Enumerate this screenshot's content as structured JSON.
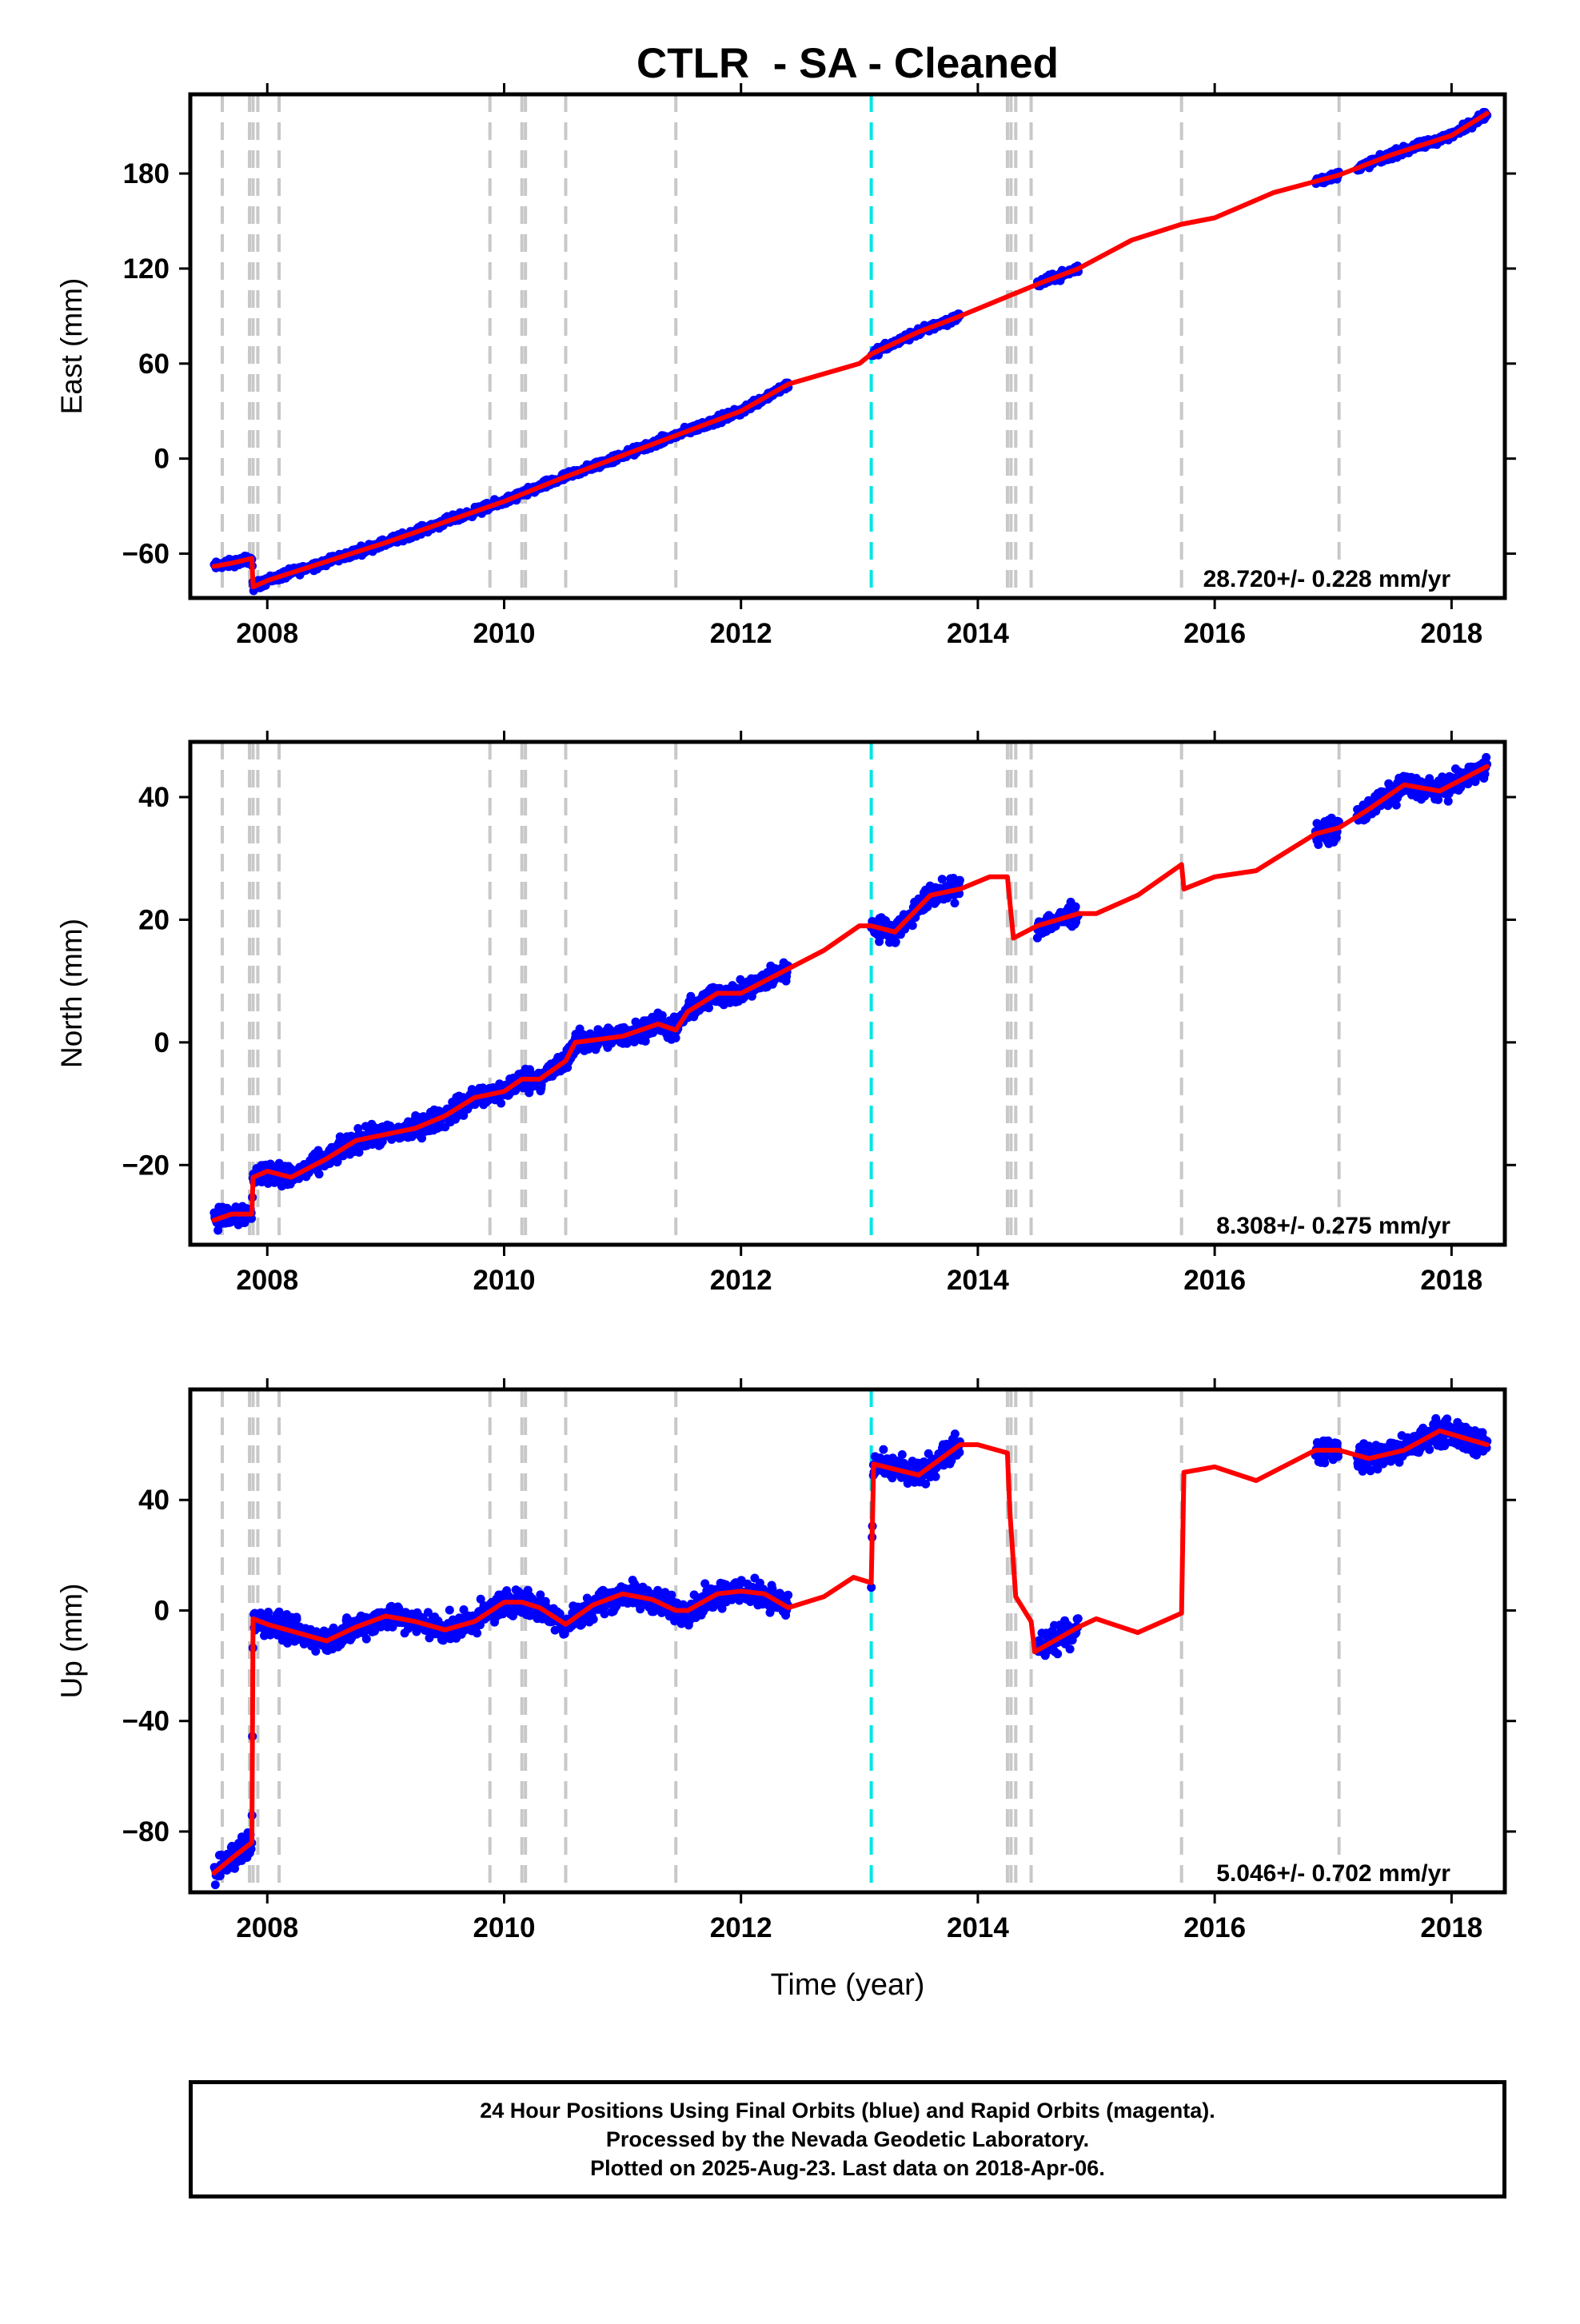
{
  "chart_data": {
    "type": "scatter",
    "title": "CTLR  - SA - Cleaned",
    "xlabel": "Time (year)",
    "xlim": [
      2007.35,
      2018.45
    ],
    "xticks": [
      2008,
      2010,
      2012,
      2014,
      2016,
      2018
    ],
    "vertical_lines": {
      "gray_dashed": [
        2007.62,
        2007.85,
        2007.88,
        2007.92,
        2008.1,
        2009.88,
        2010.15,
        2010.18,
        2010.52,
        2011.45,
        2014.25,
        2014.28,
        2014.32,
        2014.45,
        2015.72,
        2017.05
      ],
      "cyan_dashed": [
        2013.1
      ]
    },
    "series_colors": {
      "observed": "#0000ff",
      "model": "#ff0000",
      "gray_line": "#c8c8c8",
      "cyan_line": "#00e5e5"
    },
    "observation_windows": [
      [
        2007.55,
        2008.0
      ],
      [
        2008.0,
        2012.4
      ],
      [
        2013.1,
        2013.85
      ],
      [
        2014.5,
        2014.85
      ],
      [
        2016.85,
        2017.05
      ],
      [
        2017.2,
        2018.3
      ]
    ],
    "panels": [
      {
        "ylabel": "East (mm)",
        "ylim": [
          -88,
          230
        ],
        "yticks": [
          -60,
          0,
          60,
          120,
          180
        ],
        "rate": "28.720+/- 0.228 mm/yr",
        "noise_mm": 2.2,
        "model": [
          [
            2007.55,
            -68
          ],
          [
            2007.7,
            -66
          ],
          [
            2007.87,
            -63
          ],
          [
            2007.88,
            -81
          ],
          [
            2008.0,
            -77
          ],
          [
            2008.5,
            -65
          ],
          [
            2009.0,
            -53
          ],
          [
            2009.5,
            -40
          ],
          [
            2010.0,
            -27
          ],
          [
            2010.5,
            -12
          ],
          [
            2011.0,
            2
          ],
          [
            2011.5,
            16
          ],
          [
            2012.0,
            30
          ],
          [
            2012.4,
            47
          ],
          [
            2013.0,
            60
          ],
          [
            2013.1,
            66
          ],
          [
            2013.5,
            80
          ],
          [
            2013.85,
            90
          ],
          [
            2014.5,
            110
          ],
          [
            2014.85,
            120
          ],
          [
            2015.3,
            138
          ],
          [
            2015.72,
            148
          ],
          [
            2016.0,
            152
          ],
          [
            2016.5,
            168
          ],
          [
            2017.05,
            179
          ],
          [
            2017.5,
            192
          ],
          [
            2018.0,
            204
          ],
          [
            2018.3,
            218
          ]
        ]
      },
      {
        "ylabel": "North (mm)",
        "ylim": [
          -33,
          49
        ],
        "yticks": [
          -20,
          0,
          20,
          40
        ],
        "rate": "8.308+/- 0.275 mm/yr",
        "noise_mm": 1.5,
        "model": [
          [
            2007.55,
            -29
          ],
          [
            2007.7,
            -28
          ],
          [
            2007.87,
            -28
          ],
          [
            2007.88,
            -22
          ],
          [
            2008.0,
            -21
          ],
          [
            2008.2,
            -22
          ],
          [
            2008.5,
            -19
          ],
          [
            2008.75,
            -16
          ],
          [
            2009.0,
            -15
          ],
          [
            2009.25,
            -14
          ],
          [
            2009.5,
            -12
          ],
          [
            2009.75,
            -9
          ],
          [
            2010.0,
            -8
          ],
          [
            2010.15,
            -6
          ],
          [
            2010.3,
            -6
          ],
          [
            2010.52,
            -3
          ],
          [
            2010.6,
            0
          ],
          [
            2011.0,
            1
          ],
          [
            2011.3,
            3
          ],
          [
            2011.45,
            2
          ],
          [
            2011.55,
            5
          ],
          [
            2011.8,
            8
          ],
          [
            2012.0,
            8
          ],
          [
            2012.2,
            10
          ],
          [
            2012.4,
            12
          ],
          [
            2012.7,
            15
          ],
          [
            2013.0,
            19
          ],
          [
            2013.1,
            19
          ],
          [
            2013.3,
            18
          ],
          [
            2013.6,
            24
          ],
          [
            2013.85,
            25
          ],
          [
            2014.1,
            27
          ],
          [
            2014.25,
            27
          ],
          [
            2014.3,
            17
          ],
          [
            2014.5,
            19
          ],
          [
            2014.85,
            21
          ],
          [
            2015.0,
            21
          ],
          [
            2015.35,
            24
          ],
          [
            2015.72,
            29
          ],
          [
            2015.74,
            25
          ],
          [
            2016.0,
            27
          ],
          [
            2016.35,
            28
          ],
          [
            2016.85,
            34
          ],
          [
            2017.05,
            35
          ],
          [
            2017.3,
            38
          ],
          [
            2017.6,
            42
          ],
          [
            2017.9,
            41
          ],
          [
            2018.3,
            45
          ]
        ]
      },
      {
        "ylabel": "Up (mm)",
        "ylim": [
          -102,
          80
        ],
        "yticks": [
          -80,
          -40,
          0,
          40
        ],
        "rate": "5.046+/- 0.702 mm/yr",
        "noise_mm": 4,
        "model": [
          [
            2007.55,
            -95
          ],
          [
            2007.75,
            -88
          ],
          [
            2007.87,
            -84
          ],
          [
            2007.88,
            -3
          ],
          [
            2008.0,
            -5
          ],
          [
            2008.25,
            -8
          ],
          [
            2008.5,
            -11
          ],
          [
            2008.75,
            -6
          ],
          [
            2009.0,
            -2
          ],
          [
            2009.25,
            -4
          ],
          [
            2009.5,
            -7
          ],
          [
            2009.75,
            -4
          ],
          [
            2010.0,
            3
          ],
          [
            2010.15,
            3
          ],
          [
            2010.3,
            1
          ],
          [
            2010.52,
            -5
          ],
          [
            2010.75,
            2
          ],
          [
            2011.0,
            6
          ],
          [
            2011.25,
            4
          ],
          [
            2011.45,
            0
          ],
          [
            2011.55,
            0
          ],
          [
            2011.8,
            6
          ],
          [
            2012.0,
            7
          ],
          [
            2012.2,
            6
          ],
          [
            2012.4,
            1
          ],
          [
            2012.7,
            5
          ],
          [
            2012.95,
            12
          ],
          [
            2013.1,
            10
          ],
          [
            2013.12,
            53
          ],
          [
            2013.5,
            49
          ],
          [
            2013.85,
            60
          ],
          [
            2014.0,
            60
          ],
          [
            2014.25,
            57
          ],
          [
            2014.27,
            36
          ],
          [
            2014.32,
            5
          ],
          [
            2014.45,
            -4
          ],
          [
            2014.48,
            -15
          ],
          [
            2014.85,
            -6
          ],
          [
            2015.0,
            -3
          ],
          [
            2015.35,
            -8
          ],
          [
            2015.72,
            -1
          ],
          [
            2015.74,
            50
          ],
          [
            2016.0,
            52
          ],
          [
            2016.35,
            47
          ],
          [
            2016.85,
            58
          ],
          [
            2017.05,
            58
          ],
          [
            2017.3,
            55
          ],
          [
            2017.6,
            58
          ],
          [
            2017.9,
            65
          ],
          [
            2018.3,
            60
          ]
        ]
      }
    ]
  },
  "footer": {
    "line1": "24 Hour Positions Using Final Orbits (blue) and Rapid Orbits (magenta).",
    "line2": "Processed by the Nevada Geodetic Laboratory.",
    "line3": "Plotted on 2025-Aug-23. Last data on 2018-Apr-06."
  }
}
